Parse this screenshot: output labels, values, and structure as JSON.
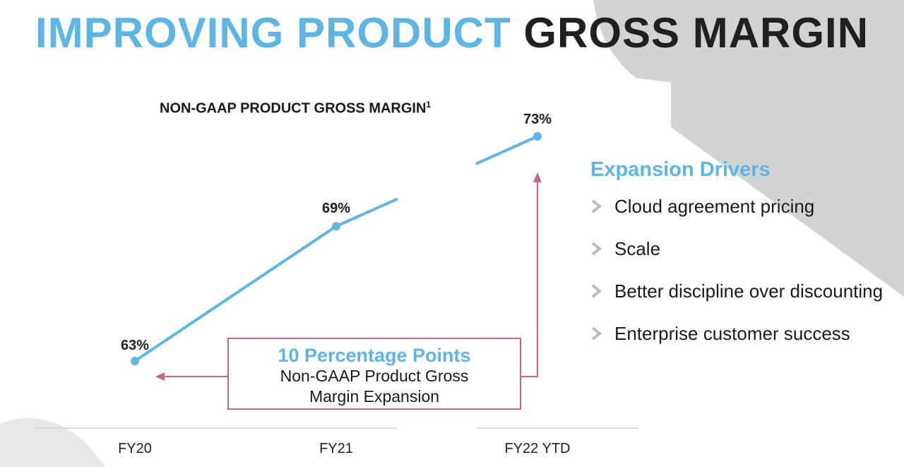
{
  "headline": {
    "part1": "IMPROVING PRODUCT",
    "part2": "GROSS MARGIN"
  },
  "chart_data": {
    "type": "line",
    "title": "NON-GAAP PRODUCT GROSS MARGIN",
    "title_superscript": "1",
    "categories": [
      "FY20",
      "FY21",
      "FY22 YTD"
    ],
    "values": [
      63,
      69,
      73
    ],
    "value_labels": [
      "63%",
      "69%",
      "73%"
    ],
    "unit": "%",
    "series_color": "#5db5e3",
    "annotation_color": "#c8628f",
    "grid": false,
    "legend": "none"
  },
  "callout": {
    "headline": "10 Percentage Points",
    "line1": "Non-GAAP Product Gross",
    "line2": "Margin Expansion"
  },
  "drivers": {
    "title": "Expansion Drivers",
    "items": [
      "Cloud agreement pricing",
      "Scale",
      "Better discipline over discounting",
      "Enterprise customer success"
    ]
  },
  "colors": {
    "accent": "#5db5e3",
    "dark": "#231f20",
    "annotation": "#c8628f",
    "background_shape": "#d2d3d3"
  }
}
